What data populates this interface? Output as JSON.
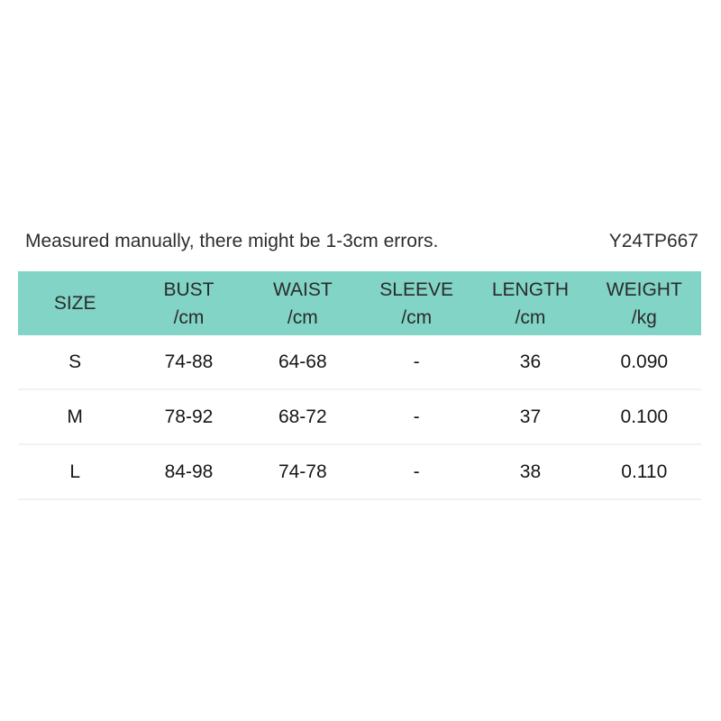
{
  "note": {
    "text": "Measured manually, there might be 1-3cm errors.",
    "code": "Y24TP667"
  },
  "size_chart": {
    "columns": [
      {
        "label": "SIZE",
        "unit": ""
      },
      {
        "label": "BUST",
        "unit": "/cm"
      },
      {
        "label": "WAIST",
        "unit": "/cm"
      },
      {
        "label": "SLEEVE",
        "unit": "/cm"
      },
      {
        "label": "LENGTH",
        "unit": "/cm"
      },
      {
        "label": "WEIGHT",
        "unit": "/kg"
      }
    ],
    "rows": [
      [
        "S",
        "74-88",
        "64-68",
        "-",
        "36",
        "0.090"
      ],
      [
        "M",
        "78-92",
        "68-72",
        "-",
        "37",
        "0.100"
      ],
      [
        "L",
        "84-98",
        "74-78",
        "-",
        "38",
        "0.110"
      ]
    ]
  },
  "colors": {
    "header_bg": "#81d4c6",
    "divider": "#f2f2f2",
    "note_text": "#2d2d2d",
    "cell_text": "#161616"
  }
}
